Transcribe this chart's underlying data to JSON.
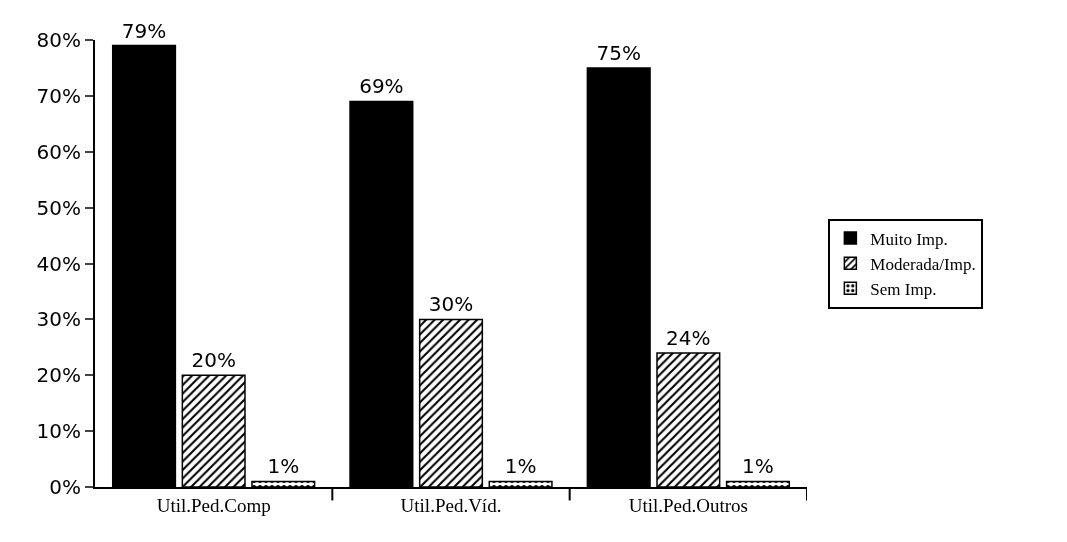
{
  "chart_data": {
    "type": "bar",
    "categories": [
      "Util.Ped.Comp",
      "Util.Ped.Víd.",
      "Util.Ped.Outros"
    ],
    "series": [
      {
        "name": "Muito Imp.",
        "color": "#000000",
        "values": [
          79,
          69,
          75
        ],
        "value_labels": [
          "79%",
          "69%",
          "75%"
        ]
      },
      {
        "name": "Moderada/Imp.",
        "color": "#000000",
        "values": [
          20,
          30,
          24
        ],
        "value_labels": [
          "20%",
          "30%",
          "24%"
        ]
      },
      {
        "name": "Sem Imp.",
        "color": "#000000",
        "values": [
          1,
          1,
          1
        ],
        "value_labels": [
          "1%",
          "1%",
          "1%"
        ]
      }
    ],
    "ylim": [
      0,
      80
    ],
    "yticks": [
      {
        "value": 0,
        "label": "0%"
      },
      {
        "value": 10,
        "label": "10%"
      },
      {
        "value": 20,
        "label": "20%"
      },
      {
        "value": 30,
        "label": "30%"
      },
      {
        "value": 40,
        "label": "40%"
      },
      {
        "value": 50,
        "label": "50%"
      },
      {
        "value": 60,
        "label": "60%"
      },
      {
        "value": 70,
        "label": "70%"
      },
      {
        "value": 80,
        "label": "80%"
      }
    ],
    "grid": false,
    "legend": "right"
  }
}
